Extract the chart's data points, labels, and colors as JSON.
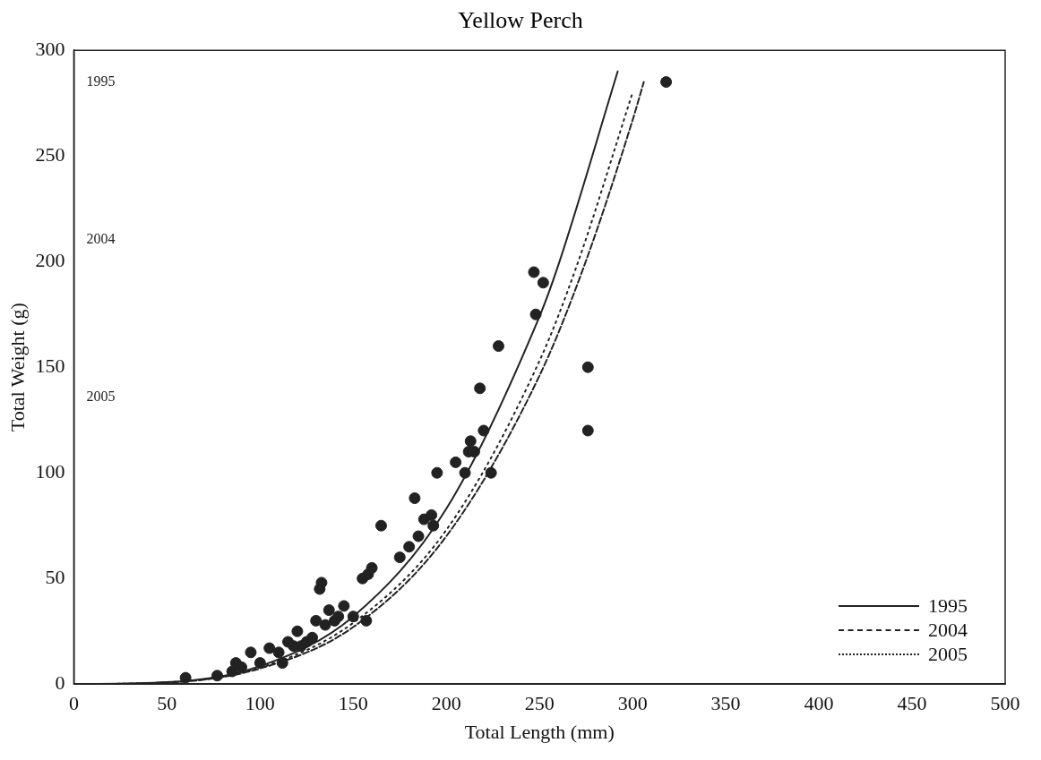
{
  "chart_data": {
    "type": "scatter",
    "title": "Yellow Perch",
    "xlabel": "Total Length (mm)",
    "ylabel": "Total Weight (g)",
    "xlim": [
      0,
      500
    ],
    "xticks": [
      0,
      50,
      100,
      150,
      200,
      250,
      300,
      350,
      400,
      450,
      500
    ],
    "ylim": [
      0,
      300
    ],
    "yticks": [
      0,
      50,
      100,
      150,
      200,
      250,
      300
    ],
    "grid": false,
    "legend": "bottom right",
    "annotations": [
      "1995",
      "2004",
      "2005"
    ],
    "series": [
      {
        "type": "scatter",
        "marker": "circle",
        "color": "#222222",
        "x": [
          60,
          77,
          85,
          87,
          90,
          95,
          100,
          105,
          110,
          112,
          115,
          118,
          120,
          122,
          125,
          128,
          130,
          132,
          133,
          135,
          137,
          140,
          142,
          145,
          150,
          155,
          157,
          158,
          160,
          165,
          175,
          180,
          183,
          185,
          188,
          192,
          193,
          195,
          205,
          210,
          212,
          213,
          215,
          218,
          220,
          224,
          228,
          247,
          248,
          252,
          276,
          276,
          318
        ],
        "values": [
          3,
          4,
          6,
          10,
          8,
          15,
          10,
          17,
          15,
          10,
          20,
          18,
          25,
          18,
          20,
          22,
          30,
          45,
          48,
          28,
          35,
          30,
          32,
          37,
          32,
          50,
          30,
          52,
          55,
          75,
          60,
          65,
          88,
          70,
          78,
          80,
          75,
          100,
          105,
          100,
          110,
          115,
          110,
          140,
          120,
          100,
          160,
          195,
          175,
          190,
          150,
          120,
          285
        ]
      },
      {
        "name": "1995",
        "type": "line",
        "line_style": "solid",
        "marker": "none",
        "color": "#222222",
        "x": [
          0,
          50,
          100,
          150,
          200,
          250,
          260,
          292
        ],
        "values": [
          0,
          0.9,
          8.5,
          32,
          83,
          174,
          198,
          290
        ]
      },
      {
        "name": "2004",
        "type": "line",
        "line_style": "dashed",
        "marker": "none",
        "color": "#222222",
        "x": [
          0,
          50,
          100,
          150,
          200,
          250,
          274,
          300,
          306
        ],
        "values": [
          0,
          0.7,
          7.4,
          27,
          70,
          146,
          198,
          267,
          285
        ]
      },
      {
        "name": "2005",
        "type": "line",
        "line_style": "dotted",
        "marker": "none",
        "color": "#222222",
        "x": [
          0,
          50,
          100,
          150,
          200,
          250,
          270,
          300
        ],
        "values": [
          0,
          0.8,
          7.8,
          29,
          73,
          153,
          198,
          280
        ]
      }
    ]
  }
}
